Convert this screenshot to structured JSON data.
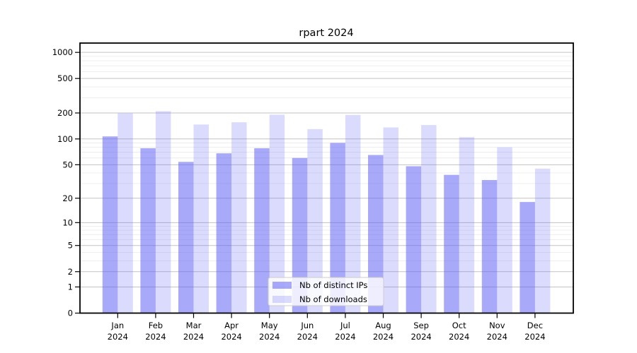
{
  "chart_data": {
    "type": "bar",
    "title": "rpart 2024",
    "categories": [
      "Jan",
      "Feb",
      "Mar",
      "Apr",
      "May",
      "Jun",
      "Jul",
      "Aug",
      "Sep",
      "Oct",
      "Nov",
      "Dec"
    ],
    "year_label": "2024",
    "series": [
      {
        "name": "Nb of distinct IPs",
        "values": [
          107,
          78,
          54,
          68,
          78,
          60,
          90,
          65,
          48,
          38,
          33,
          18
        ],
        "color": "#5a5af5",
        "opacity": 0.52
      },
      {
        "name": "Nb of downloads",
        "values": [
          198,
          210,
          147,
          156,
          191,
          130,
          190,
          136,
          145,
          105,
          80,
          45
        ],
        "color": "#5a5af5",
        "opacity": 0.22
      }
    ],
    "xlabel": "",
    "ylabel": "",
    "y_axis": {
      "scale": "log1p",
      "ticks": [
        0,
        1,
        2,
        5,
        10,
        20,
        50,
        100,
        200,
        500,
        1000
      ],
      "range_top": 1280
    },
    "grid": {
      "on": true,
      "major_color": "#c3c3c3",
      "minor_color": "#ececec"
    },
    "legend": {
      "position": "bottom-center",
      "entries": [
        "Nb of distinct IPs",
        "Nb of downloads"
      ]
    },
    "axis_color": "#000000",
    "background_color": "#ffffff"
  }
}
